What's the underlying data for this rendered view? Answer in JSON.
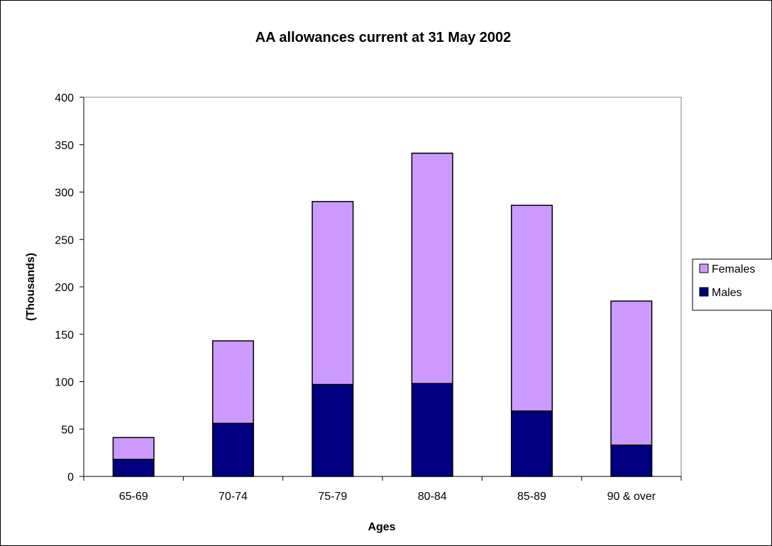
{
  "chart_data": {
    "type": "bar",
    "stacked": true,
    "title": "AA allowances current at 31 May 2002",
    "xlabel": "Ages",
    "ylabel": "(Thousands)",
    "categories": [
      "65-69",
      "70-74",
      "75-79",
      "80-84",
      "85-89",
      "90 & over"
    ],
    "series": [
      {
        "name": "Males",
        "values": [
          18,
          56,
          97,
          98,
          69,
          33
        ],
        "color": "#000080"
      },
      {
        "name": "Females",
        "values": [
          23,
          87,
          193,
          243,
          217,
          152
        ],
        "color": "#CC99FF"
      }
    ],
    "ylim": [
      0,
      400
    ],
    "yticks": [
      "0",
      "50",
      "100",
      "150",
      "200",
      "250",
      "300",
      "350",
      "400"
    ],
    "grid": false,
    "legend": {
      "position": "right",
      "entries": [
        "Females",
        "Males"
      ]
    },
    "plot_background": "#ffffff",
    "frame_color": "#808080"
  }
}
